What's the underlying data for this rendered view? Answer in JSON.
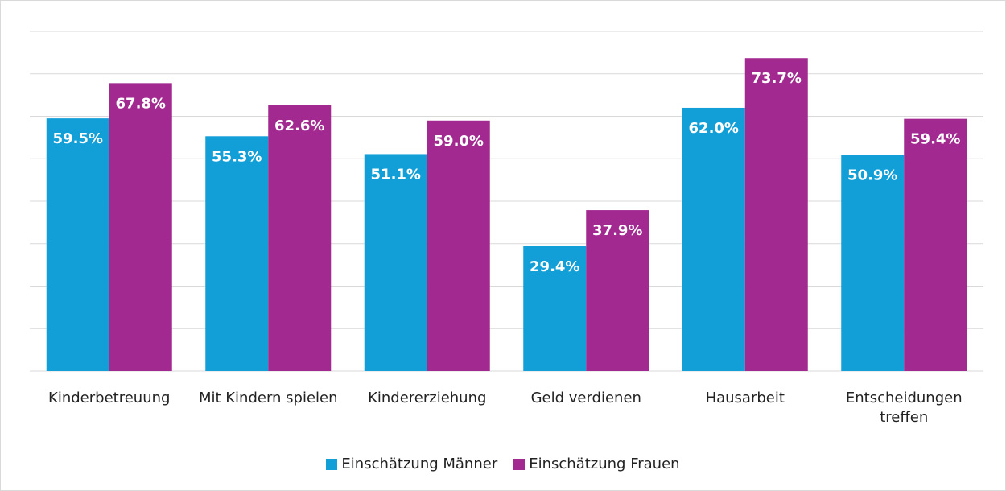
{
  "chart_data": {
    "type": "bar",
    "categories": [
      "Kinderbetreuung",
      "Mit Kindern spielen",
      "Kindererziehung",
      "Geld verdienen",
      "Hausarbeit",
      "Entscheidungen treffen"
    ],
    "series": [
      {
        "name": "Einschätzung Männer",
        "color": "#129fd8",
        "values": [
          59.5,
          55.3,
          51.1,
          29.4,
          62.0,
          50.9
        ],
        "value_labels": [
          "59.5%",
          "55.3%",
          "51.1%",
          "29.4%",
          "62.0%",
          "50.9%"
        ]
      },
      {
        "name": "Einschätzung Frauen",
        "color": "#a1298f",
        "values": [
          67.8,
          62.6,
          59.0,
          37.9,
          73.7,
          59.4
        ],
        "value_labels": [
          "67.8%",
          "62.6%",
          "59.0%",
          "37.9%",
          "73.7%",
          "59.4%"
        ]
      }
    ],
    "ylim": [
      0,
      80
    ],
    "yticks": [
      0,
      10,
      20,
      30,
      40,
      50,
      60,
      70,
      80
    ],
    "grid": true,
    "legend": "bottom"
  }
}
